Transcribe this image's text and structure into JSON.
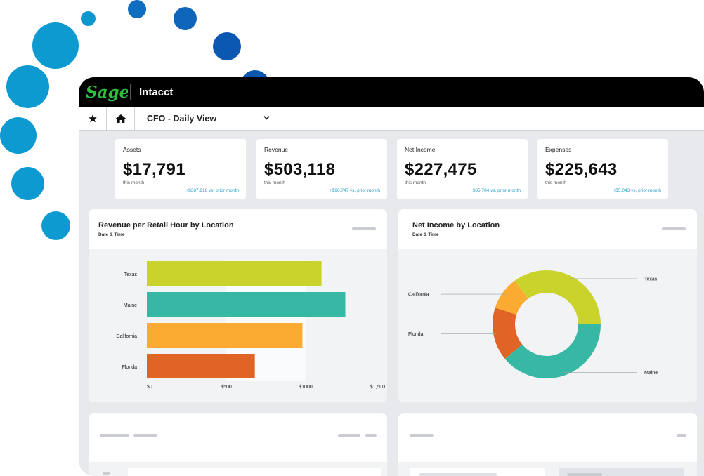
{
  "app": {
    "brand": "Sage",
    "product": "Intacct"
  },
  "nav": {
    "view_label": "CFO - Daily View"
  },
  "kpis": [
    {
      "title": "Assets",
      "value": "$17,791",
      "sub": "this month",
      "change": "+$387,918 vs. prior month"
    },
    {
      "title": "Revenue",
      "value": "$503,118",
      "sub": "this month",
      "change": "+$90,747 vs. prior month"
    },
    {
      "title": "Net Income",
      "value": "$227,475",
      "sub": "this month",
      "change": "+$85,704 vs. prior month"
    },
    {
      "title": "Expenses",
      "value": "$225,643",
      "sub": "this month",
      "change": "+$5,043 vs. prior month"
    }
  ],
  "charts": {
    "revenue": {
      "title": "Revenue per Retail Hour by Location",
      "subtitle": "Date & Time"
    },
    "netincome": {
      "title": "Net Income by Location",
      "subtitle": "Date & Time"
    }
  },
  "colors": {
    "accent": "#2a9fc9",
    "brand_green": "#2fbf3f",
    "topbar": "#000000"
  },
  "chart_data": [
    {
      "type": "bar",
      "orientation": "horizontal",
      "title": "Revenue per Retail Hour by Location",
      "subtitle": "Date & Time",
      "categories": [
        "Texas",
        "Maine",
        "California",
        "Florida"
      ],
      "values": [
        1100,
        1250,
        980,
        680
      ],
      "colors": [
        "#c9d32c",
        "#36b8a4",
        "#fbab32",
        "#e06426"
      ],
      "tick_labels": [
        "$0",
        "$500",
        "$1000",
        "$1,500"
      ],
      "xlim": [
        0,
        1500
      ]
    },
    {
      "type": "pie",
      "donut": true,
      "title": "Net Income by Location",
      "subtitle": "Date & Time",
      "categories": [
        "Texas",
        "Maine",
        "Florida",
        "California"
      ],
      "values": [
        35,
        39,
        16,
        10
      ],
      "colors": [
        "#c9d32c",
        "#36b8a4",
        "#e06426",
        "#fbab32"
      ]
    }
  ]
}
